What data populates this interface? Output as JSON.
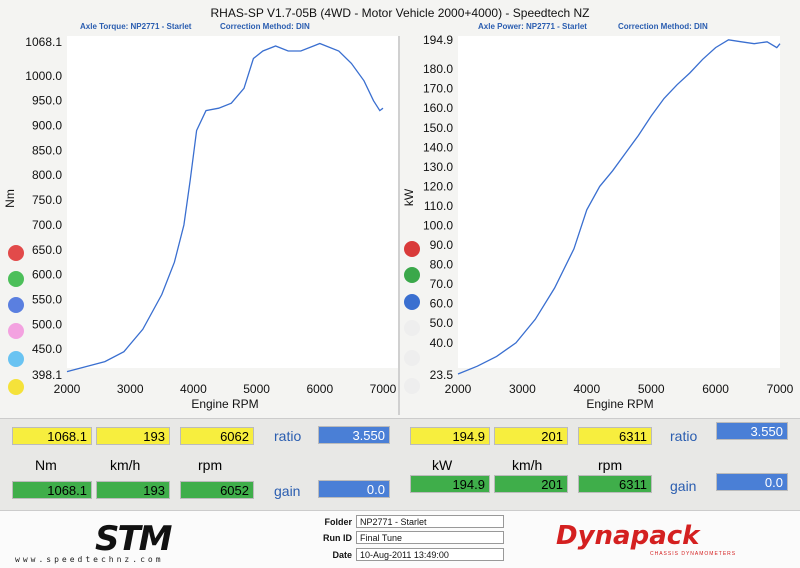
{
  "header": {
    "title": "RHAS-SP V1.7-05B   (4WD - Motor Vehicle 2000+4000) - Speedtech NZ",
    "left_label": "Axle Torque: NP2771 - Starlet",
    "left_method": "Correction Method: DIN",
    "right_label": "Axle Power: NP2771 - Starlet",
    "right_method": "Correction Method: DIN"
  },
  "chart_data": [
    {
      "type": "line",
      "ylabel": "Nm",
      "xlabel": "Engine RPM",
      "x_ticks": [
        "2000",
        "3000",
        "4000",
        "5000",
        "6000",
        "7000"
      ],
      "y_ticks": [
        "398.1",
        "450.0",
        "500.0",
        "550.0",
        "600.0",
        "650.0",
        "700.0",
        "750.0",
        "800.0",
        "850.0",
        "900.0",
        "950.0",
        "1000.0",
        "1068.1"
      ],
      "xlim": [
        2000,
        7000
      ],
      "ylim": [
        398.1,
        1068.1
      ],
      "series": [
        {
          "x": [
            2000,
            2300,
            2600,
            2900,
            3200,
            3500,
            3700,
            3850,
            3950,
            4050,
            4200,
            4400,
            4600,
            4800,
            4950,
            5100,
            5300,
            5500,
            5700,
            5900,
            6000,
            6100,
            6300,
            6500,
            6700,
            6850,
            6950,
            7000
          ],
          "y": [
            405,
            415,
            425,
            445,
            490,
            560,
            625,
            700,
            790,
            890,
            930,
            935,
            945,
            975,
            1035,
            1050,
            1060,
            1050,
            1050,
            1060,
            1065,
            1060,
            1050,
            1025,
            990,
            950,
            930,
            935
          ]
        }
      ]
    },
    {
      "type": "line",
      "ylabel": "kW",
      "xlabel": "Engine RPM",
      "x_ticks": [
        "2000",
        "3000",
        "4000",
        "5000",
        "6000",
        "7000"
      ],
      "y_ticks": [
        "23.5",
        "40.0",
        "50.0",
        "60.0",
        "70.0",
        "80.0",
        "90.0",
        "100.0",
        "110.0",
        "120.0",
        "130.0",
        "140.0",
        "150.0",
        "160.0",
        "170.0",
        "180.0",
        "194.9"
      ],
      "xlim": [
        2000,
        7000
      ],
      "ylim": [
        23.5,
        194.9
      ],
      "series": [
        {
          "x": [
            2000,
            2300,
            2600,
            2900,
            3200,
            3500,
            3800,
            4000,
            4200,
            4400,
            4600,
            4800,
            5000,
            5200,
            5400,
            5600,
            5800,
            6000,
            6200,
            6400,
            6600,
            6800,
            6950,
            7000
          ],
          "y": [
            24,
            28,
            33,
            40,
            52,
            68,
            88,
            108,
            120,
            128,
            137,
            146,
            156,
            165,
            172,
            178,
            185,
            191,
            195,
            194,
            193,
            194,
            191,
            193
          ]
        }
      ]
    }
  ],
  "panel": {
    "left": {
      "row1": [
        "1068.1",
        "193",
        "6062"
      ],
      "units": [
        "Nm",
        "km/h",
        "rpm"
      ],
      "row2": [
        "1068.1",
        "193",
        "6052"
      ],
      "ratio_label": "ratio",
      "ratio_value": "3.550",
      "gain_label": "gain",
      "gain_value": "0.0"
    },
    "right": {
      "row1": [
        "194.9",
        "201",
        "6311"
      ],
      "units": [
        "kW",
        "km/h",
        "rpm"
      ],
      "row2": [
        "194.9",
        "201",
        "6311"
      ],
      "ratio_label": "ratio",
      "ratio_value": "3.550",
      "gain_label": "gain",
      "gain_value": "0.0"
    }
  },
  "footer": {
    "folder_label": "Folder",
    "folder_value": "NP2771 - Starlet",
    "runid_label": "Run ID",
    "runid_value": "Final Tune",
    "date_label": "Date",
    "date_value": "10-Aug-2011  13:49:00",
    "logo_stm": "STM",
    "logo_url": "www.speedtechnz.com",
    "logo_dyna": "Dynapack",
    "logo_dyna_sub": "CHASSIS DYNAMOMETERS"
  },
  "colors": {
    "line": "#3a6fd0",
    "yellow": "#f7ee3e",
    "green": "#3fae4a",
    "blue": "#4a7fd6",
    "dots_left": [
      "#e24a4a",
      "#4cbf5a",
      "#5a7fe0",
      "#f3a2e0",
      "#69c3f2",
      "#f5e23a"
    ],
    "dots_right": [
      "#d93a3a",
      "#3aa84a",
      "#3a6fd0",
      "#eeeeee",
      "#eeeeee",
      "#eeeeee"
    ]
  }
}
